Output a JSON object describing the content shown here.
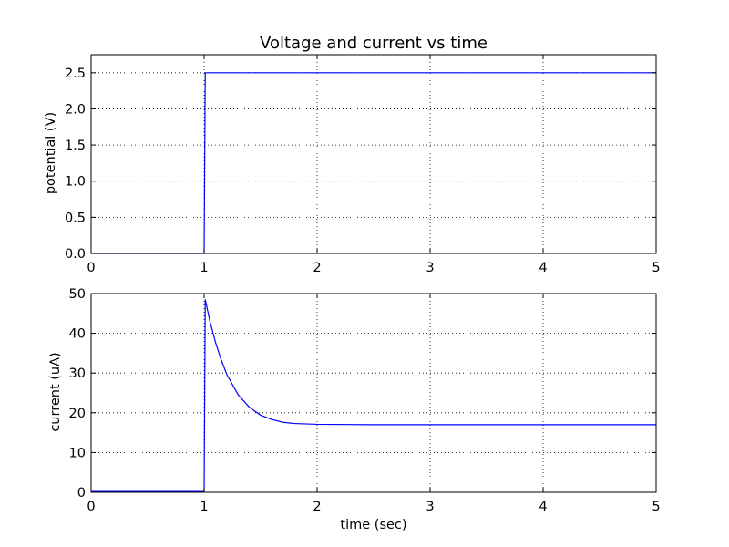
{
  "chart_data": [
    {
      "type": "line",
      "title": "Voltage and current vs time",
      "xlabel": "",
      "ylabel": "potential (V)",
      "xlim": [
        0,
        5
      ],
      "ylim": [
        0,
        2.75
      ],
      "x_ticks": [
        "0",
        "1",
        "2",
        "3",
        "4",
        "5"
      ],
      "y_ticks": [
        "0.0",
        "0.5",
        "1.0",
        "1.5",
        "2.0",
        "2.5"
      ],
      "grid": true,
      "series": [
        {
          "color": "#0000ff",
          "points": [
            [
              0,
              0
            ],
            [
              1.0,
              0
            ],
            [
              1.01,
              2.5
            ],
            [
              5,
              2.5
            ]
          ]
        }
      ]
    },
    {
      "type": "line",
      "title": "",
      "xlabel": "time (sec)",
      "ylabel": "current (uA)",
      "xlim": [
        0,
        5
      ],
      "ylim": [
        0,
        50
      ],
      "x_ticks": [
        "0",
        "1",
        "2",
        "3",
        "4",
        "5"
      ],
      "y_ticks": [
        "0",
        "10",
        "20",
        "30",
        "40",
        "50"
      ],
      "grid": true,
      "series": [
        {
          "color": "#0000ff",
          "points": [
            [
              0,
              0.2
            ],
            [
              1.0,
              0.2
            ],
            [
              1.01,
              48.5
            ],
            [
              1.05,
              43.2
            ],
            [
              1.1,
              37.8
            ],
            [
              1.15,
              33.4
            ],
            [
              1.2,
              29.7
            ],
            [
              1.3,
              24.6
            ],
            [
              1.4,
              21.4
            ],
            [
              1.5,
              19.4
            ],
            [
              1.6,
              18.3
            ],
            [
              1.7,
              17.6
            ],
            [
              1.8,
              17.3
            ],
            [
              2.0,
              17.1
            ],
            [
              2.5,
              17.0
            ],
            [
              3.0,
              17.0
            ],
            [
              4.0,
              17.0
            ],
            [
              5.0,
              17.0
            ]
          ]
        }
      ]
    }
  ]
}
